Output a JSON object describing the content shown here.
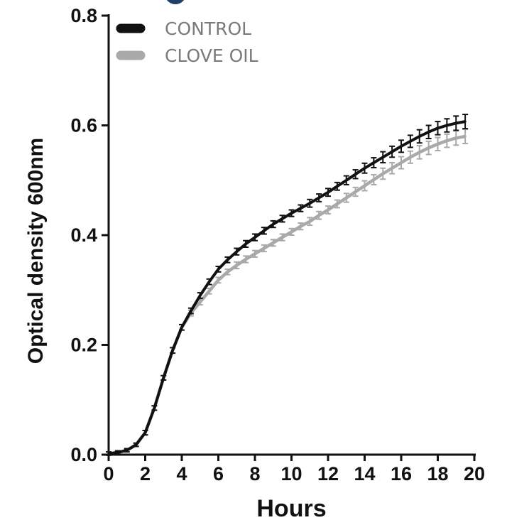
{
  "chart_data": {
    "type": "line",
    "title": "",
    "xlabel": "Hours",
    "ylabel": "Optical density 600nm",
    "xlim": [
      0,
      20
    ],
    "ylim": [
      0,
      0.8
    ],
    "x_ticks": [
      "0",
      "2",
      "4",
      "6",
      "8",
      "10",
      "12",
      "14",
      "16",
      "18",
      "20"
    ],
    "y_ticks": [
      "0.0",
      "0.2",
      "0.4",
      "0.6",
      "0.8"
    ],
    "legend_position": "top-left",
    "grid": false,
    "error_bars": true,
    "x": [
      0,
      0.5,
      1,
      1.5,
      2,
      2.5,
      3,
      3.5,
      4,
      4.5,
      5,
      5.5,
      6,
      6.5,
      7,
      7.5,
      8,
      8.5,
      9,
      9.5,
      10,
      10.5,
      11,
      11.5,
      12,
      12.5,
      13,
      13.5,
      14,
      14.5,
      15,
      15.5,
      16,
      16.5,
      17,
      17.5,
      18,
      18.5,
      19,
      19.5
    ],
    "series": [
      {
        "name": "CONTROL",
        "color": "#111111",
        "values": [
          0.002,
          0.004,
          0.008,
          0.018,
          0.04,
          0.085,
          0.14,
          0.19,
          0.232,
          0.262,
          0.29,
          0.315,
          0.338,
          0.355,
          0.37,
          0.384,
          0.396,
          0.408,
          0.42,
          0.43,
          0.44,
          0.449,
          0.458,
          0.468,
          0.478,
          0.489,
          0.5,
          0.511,
          0.522,
          0.532,
          0.542,
          0.552,
          0.562,
          0.571,
          0.58,
          0.588,
          0.595,
          0.6,
          0.604,
          0.607
        ],
        "error": [
          0.003,
          0.003,
          0.003,
          0.003,
          0.004,
          0.004,
          0.004,
          0.005,
          0.005,
          0.005,
          0.005,
          0.005,
          0.005,
          0.005,
          0.006,
          0.006,
          0.006,
          0.006,
          0.006,
          0.006,
          0.006,
          0.006,
          0.007,
          0.007,
          0.007,
          0.007,
          0.008,
          0.008,
          0.009,
          0.009,
          0.01,
          0.01,
          0.011,
          0.011,
          0.012,
          0.012,
          0.012,
          0.012,
          0.013,
          0.013
        ]
      },
      {
        "name": "CLOVE OIL",
        "color": "#a9a9a9",
        "values": [
          0.002,
          0.004,
          0.008,
          0.018,
          0.04,
          0.085,
          0.14,
          0.19,
          0.232,
          0.258,
          0.278,
          0.298,
          0.318,
          0.333,
          0.345,
          0.356,
          0.366,
          0.376,
          0.386,
          0.396,
          0.406,
          0.416,
          0.425,
          0.436,
          0.446,
          0.457,
          0.468,
          0.479,
          0.49,
          0.501,
          0.512,
          0.522,
          0.532,
          0.542,
          0.551,
          0.559,
          0.566,
          0.572,
          0.577,
          0.58
        ],
        "error": [
          0.003,
          0.003,
          0.003,
          0.003,
          0.004,
          0.004,
          0.004,
          0.005,
          0.005,
          0.005,
          0.005,
          0.005,
          0.005,
          0.005,
          0.006,
          0.006,
          0.006,
          0.006,
          0.006,
          0.006,
          0.006,
          0.006,
          0.007,
          0.007,
          0.007,
          0.007,
          0.008,
          0.008,
          0.009,
          0.009,
          0.01,
          0.01,
          0.011,
          0.011,
          0.012,
          0.012,
          0.012,
          0.012,
          0.013,
          0.013
        ]
      }
    ]
  }
}
